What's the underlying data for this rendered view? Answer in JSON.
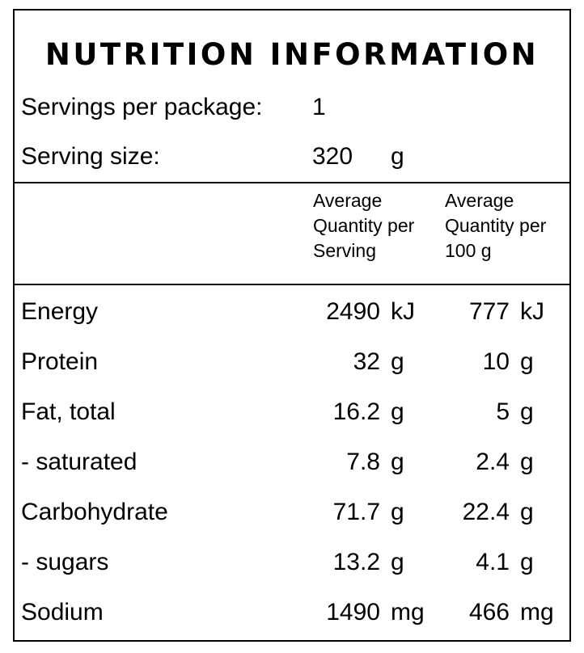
{
  "title": "NUTRITION INFORMATION",
  "servings": {
    "per_package_label": "Servings per package:",
    "per_package_value": "1",
    "size_label": "Serving size:",
    "size_value": "320",
    "size_unit": "g"
  },
  "columns": {
    "per_serving": [
      "Average",
      "Quantity per",
      "Serving"
    ],
    "per_100g": [
      "Average",
      "Quantity per",
      "100 g"
    ]
  },
  "rows": [
    {
      "name": "Energy",
      "serving": "2490",
      "serving_unit": "kJ",
      "per100": "777",
      "per100_unit": "kJ"
    },
    {
      "name": "Protein",
      "serving": "32",
      "serving_unit": "g",
      "per100": "10",
      "per100_unit": "g"
    },
    {
      "name": "Fat, total",
      "serving": "16.2",
      "serving_unit": "g",
      "per100": "5",
      "per100_unit": "g"
    },
    {
      "name": "- saturated",
      "serving": "7.8",
      "serving_unit": "g",
      "per100": "2.4",
      "per100_unit": "g"
    },
    {
      "name": "Carbohydrate",
      "serving": "71.7",
      "serving_unit": "g",
      "per100": "22.4",
      "per100_unit": "g"
    },
    {
      "name": "- sugars",
      "serving": "13.2",
      "serving_unit": "g",
      "per100": "4.1",
      "per100_unit": "g"
    },
    {
      "name": "Sodium",
      "serving": "1490",
      "serving_unit": "mg",
      "per100": "466",
      "per100_unit": "mg"
    }
  ]
}
